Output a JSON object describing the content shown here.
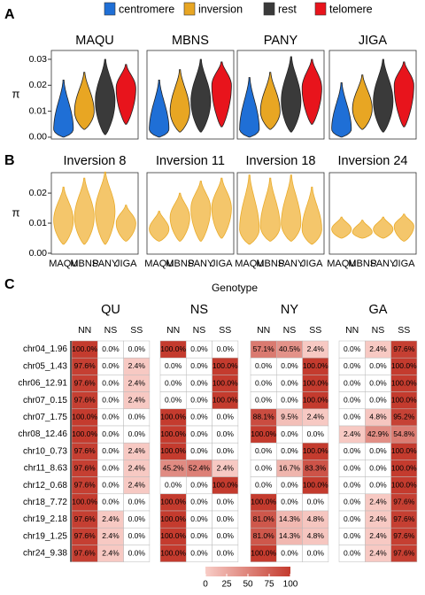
{
  "chart_data": [
    {
      "type": "violin",
      "panel_label": "A",
      "y_label": "π",
      "facets": [
        "MAQU",
        "MBNS",
        "PANY",
        "JIGA"
      ],
      "ylim": [
        -0.0007,
        0.0334
      ],
      "yticks": [
        {
          "value": 0,
          "label": "0.00"
        },
        {
          "value": 0.01,
          "label": "0.01"
        },
        {
          "value": 0.02,
          "label": "0.02"
        },
        {
          "value": 0.03,
          "label": "0.03"
        }
      ],
      "series": [
        {
          "name": "centromere",
          "color": "#1f6fd6",
          "min": [
            0,
            0,
            0,
            0
          ],
          "values": [
            0.003,
            0.003,
            0.003,
            0.003
          ],
          "max": [
            0.022,
            0.022,
            0.023,
            0.021
          ]
        },
        {
          "name": "inversion",
          "color": "#e8a623",
          "min": [
            0.003,
            0.002,
            0.003,
            0.003
          ],
          "values": [
            0.01,
            0.01,
            0.01,
            0.011
          ],
          "max": [
            0.025,
            0.026,
            0.025,
            0.024
          ]
        },
        {
          "name": "rest",
          "color": "#3a3a3a",
          "min": [
            0.001,
            0.002,
            0.002,
            0.002
          ],
          "values": [
            0.014,
            0.014,
            0.014,
            0.014
          ],
          "max": [
            0.03,
            0.03,
            0.031,
            0.03
          ]
        },
        {
          "name": "telomere",
          "color": "#e8141c",
          "min": [
            0.005,
            0.004,
            0.005,
            0.004
          ],
          "values": [
            0.019,
            0.02,
            0.019,
            0.02
          ],
          "max": [
            0.028,
            0.029,
            0.03,
            0.029
          ]
        }
      ]
    },
    {
      "type": "violin",
      "panel_label": "B",
      "y_label": "π",
      "categories": [
        "MAQU",
        "MBNS",
        "PANY",
        "JIGA"
      ],
      "color": "#f4c66b",
      "edge_color": "#e9ab2a",
      "ylim": [
        -0.0003,
        0.0268
      ],
      "yticks": [
        {
          "value": 0,
          "label": "0.00"
        },
        {
          "value": 0.01,
          "label": "0.01"
        },
        {
          "value": 0.02,
          "label": "0.02"
        }
      ],
      "facets": [
        {
          "title": "Inversion 8",
          "min": [
            0.003,
            0.003,
            0.003,
            0.004
          ],
          "values": [
            0.011,
            0.012,
            0.014,
            0.01
          ],
          "max": [
            0.022,
            0.025,
            0.027,
            0.016
          ]
        },
        {
          "title": "Inversion 11",
          "min": [
            0.004,
            0.004,
            0.004,
            0.005
          ],
          "values": [
            0.008,
            0.012,
            0.015,
            0.015
          ],
          "max": [
            0.014,
            0.02,
            0.024,
            0.025
          ]
        },
        {
          "title": "Inversion 18",
          "min": [
            0.003,
            0.004,
            0.004,
            0.003
          ],
          "values": [
            0.008,
            0.009,
            0.01,
            0.008
          ],
          "max": [
            0.026,
            0.025,
            0.026,
            0.022
          ]
        },
        {
          "title": "Inversion 24",
          "min": [
            0.005,
            0.005,
            0.005,
            0.004
          ],
          "values": [
            0.008,
            0.007,
            0.008,
            0.009
          ],
          "max": [
            0.012,
            0.011,
            0.012,
            0.013
          ]
        }
      ]
    },
    {
      "type": "heatmap",
      "panel_label": "C",
      "title": "Genotype",
      "low_color": "#f8cdc7",
      "high_color": "#c43b2e",
      "zero_color": "#ffffff",
      "rows": [
        "chr04_1.96",
        "chr05_1.43",
        "chr06_12.91",
        "chr07_0.15",
        "chr07_1.75",
        "chr08_12.46",
        "chr10_0.73",
        "chr11_8.63",
        "chr12_0.68",
        "chr18_7.72",
        "chr19_2.18",
        "chr19_1.25",
        "chr24_9.38"
      ],
      "colorbar": {
        "lim": [
          0,
          100
        ],
        "ticks": [
          0,
          25,
          50,
          75,
          100
        ]
      },
      "groups": [
        {
          "title": "QU",
          "columns": [
            "NN",
            "NS",
            "SS"
          ],
          "values": [
            [
              100,
              0,
              0
            ],
            [
              97.6,
              0,
              2.4
            ],
            [
              97.6,
              0,
              2.4
            ],
            [
              97.6,
              0,
              2.4
            ],
            [
              100,
              0,
              0
            ],
            [
              100,
              0,
              0
            ],
            [
              97.6,
              0,
              2.4
            ],
            [
              97.6,
              0,
              2.4
            ],
            [
              97.6,
              0,
              2.4
            ],
            [
              100,
              0,
              0
            ],
            [
              97.6,
              2.4,
              0
            ],
            [
              97.6,
              2.4,
              0
            ],
            [
              97.6,
              2.4,
              0
            ]
          ],
          "value_labels": [
            [
              "100.0%",
              "0.0%",
              "0.0%"
            ],
            [
              "97.6%",
              "0.0%",
              "2.4%"
            ],
            [
              "97.6%",
              "0.0%",
              "2.4%"
            ],
            [
              "97.6%",
              "0.0%",
              "2.4%"
            ],
            [
              "100.0%",
              "0.0%",
              "0.0%"
            ],
            [
              "100.0%",
              "0.0%",
              "0.0%"
            ],
            [
              "97.6%",
              "0.0%",
              "2.4%"
            ],
            [
              "97.6%",
              "0.0%",
              "2.4%"
            ],
            [
              "97.6%",
              "0.0%",
              "2.4%"
            ],
            [
              "100.0%",
              "0.0%",
              "0.0%"
            ],
            [
              "97.6%",
              "2.4%",
              "0.0%"
            ],
            [
              "97.6%",
              "2.4%",
              "0.0%"
            ],
            [
              "97.6%",
              "2.4%",
              "0.0%"
            ]
          ]
        },
        {
          "title": "NS",
          "columns": [
            "NN",
            "NS",
            "SS"
          ],
          "values": [
            [
              100,
              0,
              0
            ],
            [
              0,
              0,
              100
            ],
            [
              0,
              0,
              100
            ],
            [
              0,
              0,
              100
            ],
            [
              100,
              0,
              0
            ],
            [
              100,
              0,
              0
            ],
            [
              100,
              0,
              0
            ],
            [
              45.2,
              52.4,
              2.4
            ],
            [
              0,
              0,
              100
            ],
            [
              100,
              0,
              0
            ],
            [
              100,
              0,
              0
            ],
            [
              100,
              0,
              0
            ],
            [
              100,
              0,
              0
            ]
          ],
          "value_labels": [
            [
              "100.0%",
              "0.0%",
              "0.0%"
            ],
            [
              "0.0%",
              "0.0%",
              "100.0%"
            ],
            [
              "0.0%",
              "0.0%",
              "100.0%"
            ],
            [
              "0.0%",
              "0.0%",
              "100.0%"
            ],
            [
              "100.0%",
              "0.0%",
              "0.0%"
            ],
            [
              "100.0%",
              "0.0%",
              "0.0%"
            ],
            [
              "100.0%",
              "0.0%",
              "0.0%"
            ],
            [
              "45.2%",
              "52.4%",
              "2.4%"
            ],
            [
              "0.0%",
              "0.0%",
              "100.0%"
            ],
            [
              "100.0%",
              "0.0%",
              "0.0%"
            ],
            [
              "100.0%",
              "0.0%",
              "0.0%"
            ],
            [
              "100.0%",
              "0.0%",
              "0.0%"
            ],
            [
              "100.0%",
              "0.0%",
              "0.0%"
            ]
          ]
        },
        {
          "title": "NY",
          "columns": [
            "NN",
            "NS",
            "SS"
          ],
          "values": [
            [
              57.1,
              40.5,
              2.4
            ],
            [
              0,
              0,
              100
            ],
            [
              0,
              0,
              100
            ],
            [
              0,
              0,
              100
            ],
            [
              88.1,
              9.5,
              2.4
            ],
            [
              100,
              0,
              0
            ],
            [
              0,
              0,
              100
            ],
            [
              0,
              16.7,
              83.3
            ],
            [
              0,
              0,
              100
            ],
            [
              100,
              0,
              0
            ],
            [
              81.0,
              14.3,
              4.8
            ],
            [
              81.0,
              14.3,
              4.8
            ],
            [
              100,
              0,
              0
            ]
          ],
          "value_labels": [
            [
              "57.1%",
              "40.5%",
              "2.4%"
            ],
            [
              "0.0%",
              "0.0%",
              "100.0%"
            ],
            [
              "0.0%",
              "0.0%",
              "100.0%"
            ],
            [
              "0.0%",
              "0.0%",
              "100.0%"
            ],
            [
              "88.1%",
              "9.5%",
              "2.4%"
            ],
            [
              "100.0%",
              "0.0%",
              "0.0%"
            ],
            [
              "0.0%",
              "0.0%",
              "100.0%"
            ],
            [
              "0.0%",
              "16.7%",
              "83.3%"
            ],
            [
              "0.0%",
              "0.0%",
              "100.0%"
            ],
            [
              "100.0%",
              "0.0%",
              "0.0%"
            ],
            [
              "81.0%",
              "14.3%",
              "4.8%"
            ],
            [
              "81.0%",
              "14.3%",
              "4.8%"
            ],
            [
              "100.0%",
              "0.0%",
              "0.0%"
            ]
          ]
        },
        {
          "title": "GA",
          "columns": [
            "NN",
            "NS",
            "SS"
          ],
          "values": [
            [
              0,
              2.4,
              97.6
            ],
            [
              0,
              0,
              100
            ],
            [
              0,
              0,
              100
            ],
            [
              0,
              0,
              100
            ],
            [
              0,
              4.8,
              95.2
            ],
            [
              2.4,
              42.9,
              54.8
            ],
            [
              0,
              0,
              100
            ],
            [
              0,
              0,
              100
            ],
            [
              0,
              0,
              100
            ],
            [
              0,
              2.4,
              97.6
            ],
            [
              0,
              2.4,
              97.6
            ],
            [
              0,
              2.4,
              97.6
            ],
            [
              0,
              2.4,
              97.6
            ]
          ],
          "value_labels": [
            [
              "0.0%",
              "2.4%",
              "97.6%"
            ],
            [
              "0.0%",
              "0.0%",
              "100.0%"
            ],
            [
              "0.0%",
              "0.0%",
              "100.0%"
            ],
            [
              "0.0%",
              "0.0%",
              "100.0%"
            ],
            [
              "0.0%",
              "4.8%",
              "95.2%"
            ],
            [
              "2.4%",
              "42.9%",
              "54.8%"
            ],
            [
              "0.0%",
              "0.0%",
              "100.0%"
            ],
            [
              "0.0%",
              "0.0%",
              "100.0%"
            ],
            [
              "0.0%",
              "0.0%",
              "100.0%"
            ],
            [
              "0.0%",
              "2.4%",
              "97.6%"
            ],
            [
              "0.0%",
              "2.4%",
              "97.6%"
            ],
            [
              "0.0%",
              "2.4%",
              "97.6%"
            ],
            [
              "0.0%",
              "2.4%",
              "97.6%"
            ]
          ]
        }
      ]
    }
  ]
}
